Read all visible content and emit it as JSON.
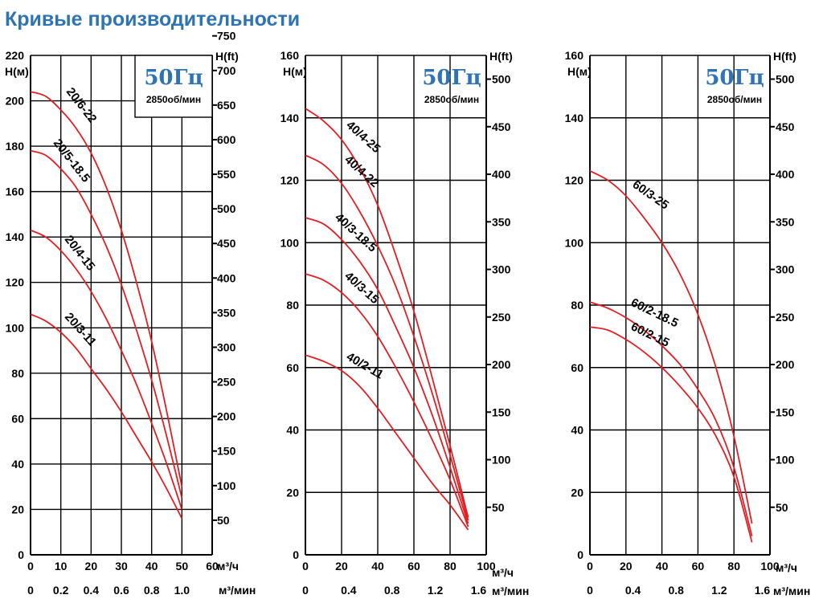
{
  "page": {
    "title": "Кривые производительности"
  },
  "colors": {
    "curve": "#e31e24",
    "title": "#2e74b5",
    "grid": "#000000"
  },
  "chart_data": [
    {
      "type": "line",
      "frequency": "50Гц",
      "speed": "2850об/мин",
      "ylabel_left": "Н(м)",
      "ylabel_right": "H(ft)",
      "xlabel_top": "м³/ч",
      "xlabel_bottom": "м³/мин",
      "xlim": [
        0,
        60
      ],
      "ylim": [
        0,
        220
      ],
      "x_ticks": [
        "0",
        "10",
        "20",
        "30",
        "40",
        "50",
        "60"
      ],
      "x2_ticks": [
        "0",
        "0.2",
        "0.4",
        "0.6",
        "0.8",
        "1.0"
      ],
      "y_ticks": [
        "0",
        "20",
        "40",
        "60",
        "80",
        "100",
        "120",
        "140",
        "160",
        "180",
        "200",
        "220"
      ],
      "y2_ticks": [
        "50",
        "100",
        "150",
        "200",
        "250",
        "300",
        "350",
        "400",
        "450",
        "500",
        "550",
        "600",
        "650",
        "700",
        "750"
      ],
      "series": [
        {
          "name": "20/6-22",
          "x": [
            0,
            5,
            10,
            15,
            20,
            25,
            30,
            35,
            40,
            45,
            50
          ],
          "y": [
            204,
            202,
            196,
            188,
            177,
            162,
            143,
            120,
            94,
            63,
            30
          ]
        },
        {
          "name": "20/5-18.5",
          "x": [
            0,
            5,
            10,
            15,
            20,
            25,
            30,
            35,
            40,
            45,
            50
          ],
          "y": [
            178,
            176,
            170,
            162,
            150,
            136,
            119,
            99,
            77,
            52,
            25
          ]
        },
        {
          "name": "20/4-15",
          "x": [
            0,
            5,
            10,
            15,
            20,
            25,
            30,
            35,
            40,
            45,
            50
          ],
          "y": [
            143,
            140,
            134,
            126,
            116,
            104,
            90,
            75,
            58,
            40,
            20
          ]
        },
        {
          "name": "20/3-11",
          "x": [
            0,
            5,
            10,
            15,
            20,
            25,
            30,
            35,
            40,
            45,
            50
          ],
          "y": [
            106,
            103,
            98,
            91,
            82,
            73,
            63,
            52,
            41,
            29,
            16
          ]
        }
      ]
    },
    {
      "type": "line",
      "frequency": "50Гц",
      "speed": "2850об/мин",
      "ylabel_left": "Н(м)",
      "ylabel_right": "H(ft)",
      "xlabel_top": "м³/ч",
      "xlabel_bottom": "м³/мин",
      "xlim": [
        0,
        100
      ],
      "ylim": [
        0,
        160
      ],
      "x_ticks": [
        "0",
        "20",
        "40",
        "60",
        "80",
        "100"
      ],
      "x2_ticks": [
        "0",
        "0.4",
        "0.8",
        "1.2",
        "1.6"
      ],
      "y_ticks": [
        "0",
        "20",
        "40",
        "60",
        "80",
        "100",
        "120",
        "140",
        "160"
      ],
      "y2_ticks": [
        "50",
        "100",
        "150",
        "200",
        "250",
        "300",
        "350",
        "400",
        "450",
        "500"
      ],
      "series": [
        {
          "name": "40/4-25",
          "x": [
            0,
            10,
            20,
            30,
            40,
            50,
            60,
            70,
            80,
            90
          ],
          "y": [
            143,
            139,
            133,
            124,
            112,
            96,
            78,
            57,
            35,
            12
          ]
        },
        {
          "name": "40/4-22",
          "x": [
            0,
            10,
            20,
            30,
            40,
            50,
            60,
            70,
            80,
            90
          ],
          "y": [
            128,
            125,
            119,
            110,
            99,
            86,
            70,
            52,
            32,
            11
          ]
        },
        {
          "name": "40/3-18.5",
          "x": [
            0,
            10,
            20,
            30,
            40,
            50,
            60,
            70,
            80,
            90
          ],
          "y": [
            108,
            106,
            101,
            94,
            85,
            73,
            60,
            45,
            28,
            10
          ]
        },
        {
          "name": "40/3-15",
          "x": [
            0,
            10,
            20,
            30,
            40,
            50,
            60,
            70,
            80,
            90
          ],
          "y": [
            90,
            88,
            84,
            78,
            70,
            60,
            49,
            37,
            24,
            9
          ]
        },
        {
          "name": "40/2-11",
          "x": [
            0,
            10,
            20,
            30,
            40,
            50,
            60,
            70,
            80,
            90
          ],
          "y": [
            64,
            62,
            59,
            54,
            47,
            39,
            31,
            23,
            16,
            8
          ]
        }
      ]
    },
    {
      "type": "line",
      "frequency": "50Гц",
      "speed": "2850об/мин",
      "ylabel_left": "Н(м)",
      "ylabel_right": "H(ft)",
      "xlabel_top": "м³/ч",
      "xlabel_bottom": "м³/мин",
      "xlim": [
        0,
        100
      ],
      "ylim": [
        0,
        160
      ],
      "x_ticks": [
        "0",
        "20",
        "40",
        "60",
        "80",
        "100"
      ],
      "x2_ticks": [
        "0",
        "0.4",
        "0.8",
        "1.2",
        "1.6"
      ],
      "y_ticks": [
        "0",
        "20",
        "40",
        "60",
        "80",
        "100",
        "120",
        "140",
        "160"
      ],
      "y2_ticks": [
        "50",
        "100",
        "150",
        "200",
        "250",
        "300",
        "350",
        "400",
        "450",
        "500"
      ],
      "series": [
        {
          "name": "60/3-25",
          "x": [
            0,
            10,
            20,
            30,
            40,
            50,
            60,
            70,
            80,
            90
          ],
          "y": [
            123,
            120,
            115,
            108,
            100,
            90,
            77,
            60,
            38,
            10
          ]
        },
        {
          "name": "60/2-18.5",
          "x": [
            0,
            10,
            20,
            30,
            40,
            50,
            60,
            70,
            80,
            90
          ],
          "y": [
            81,
            79,
            76,
            72,
            67,
            61,
            53,
            43,
            28,
            6
          ]
        },
        {
          "name": "60/2-15",
          "x": [
            0,
            10,
            20,
            30,
            40,
            50,
            60,
            70,
            80,
            90
          ],
          "y": [
            73,
            72,
            69,
            65,
            60,
            54,
            47,
            38,
            25,
            4
          ]
        }
      ]
    }
  ]
}
